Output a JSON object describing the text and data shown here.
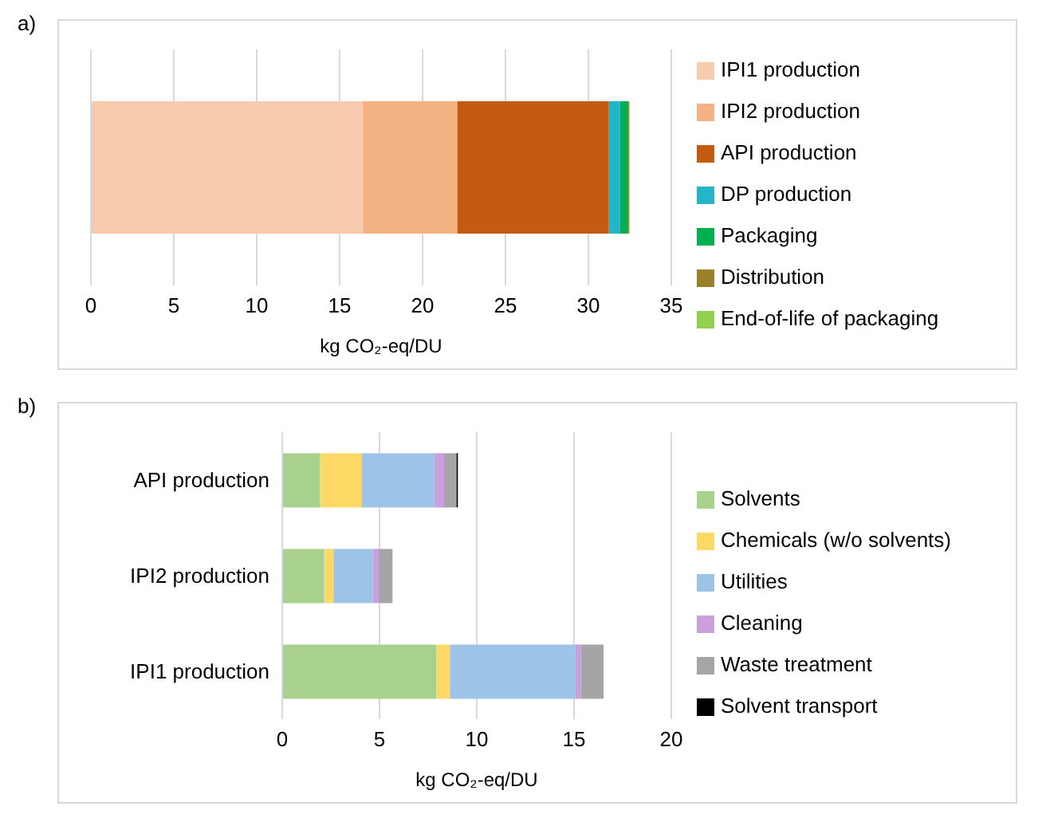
{
  "chart_data": [
    {
      "type": "bar",
      "orientation": "horizontal",
      "stacked": true,
      "annotations": [
        "a)"
      ],
      "xlabel": "kg CO₂-eq/DU",
      "categories": [
        null
      ],
      "xlim": [
        0,
        35
      ],
      "xticks": [
        0,
        5,
        10,
        15,
        20,
        25,
        30,
        35
      ],
      "grid": "x",
      "legend": "right",
      "series": [
        {
          "name": "IPI1 production",
          "color": "#f8cbad",
          "values": [
            16.4
          ]
        },
        {
          "name": "IPI2 production",
          "color": "#f4b183",
          "values": [
            5.7
          ]
        },
        {
          "name": "API production",
          "color": "#c55a11",
          "values": [
            9.1
          ]
        },
        {
          "name": "DP production",
          "color": "#25b5c9",
          "values": [
            0.7
          ]
        },
        {
          "name": "Packaging",
          "color": "#00b050",
          "values": [
            0.5
          ]
        },
        {
          "name": "Distribution",
          "color": "#9c7f2b",
          "values": [
            0.05
          ]
        },
        {
          "name": "End-of-life of packaging",
          "color": "#92d050",
          "values": [
            0.03
          ]
        }
      ]
    },
    {
      "type": "bar",
      "orientation": "horizontal",
      "stacked": true,
      "annotations": [
        "b)"
      ],
      "xlabel": "kg CO₂-eq/DU",
      "categories": [
        "API production",
        "IPI2 production",
        "IPI1 production"
      ],
      "xlim": [
        0,
        20
      ],
      "xticks": [
        0,
        5,
        10,
        15,
        20
      ],
      "grid": "x",
      "legend": "right",
      "series": [
        {
          "name": "Solvents",
          "color": "#a9d18e",
          "values": [
            1.95,
            2.16,
            7.91
          ]
        },
        {
          "name": "Chemicals  (w/o solvents)",
          "color": "#ffd966",
          "values": [
            2.13,
            0.48,
            0.71
          ]
        },
        {
          "name": "Utilities",
          "color": "#9dc3e6",
          "values": [
            3.74,
            2.02,
            6.43
          ]
        },
        {
          "name": "Cleaning",
          "color": "#c9a0dc",
          "values": [
            0.5,
            0.3,
            0.3
          ]
        },
        {
          "name": "Waste treatment",
          "color": "#a5a5a5",
          "values": [
            0.64,
            0.71,
            1.17
          ]
        },
        {
          "name": "Solvent transport",
          "color": "#000000",
          "values": [
            0.07,
            0,
            0
          ]
        }
      ]
    }
  ]
}
